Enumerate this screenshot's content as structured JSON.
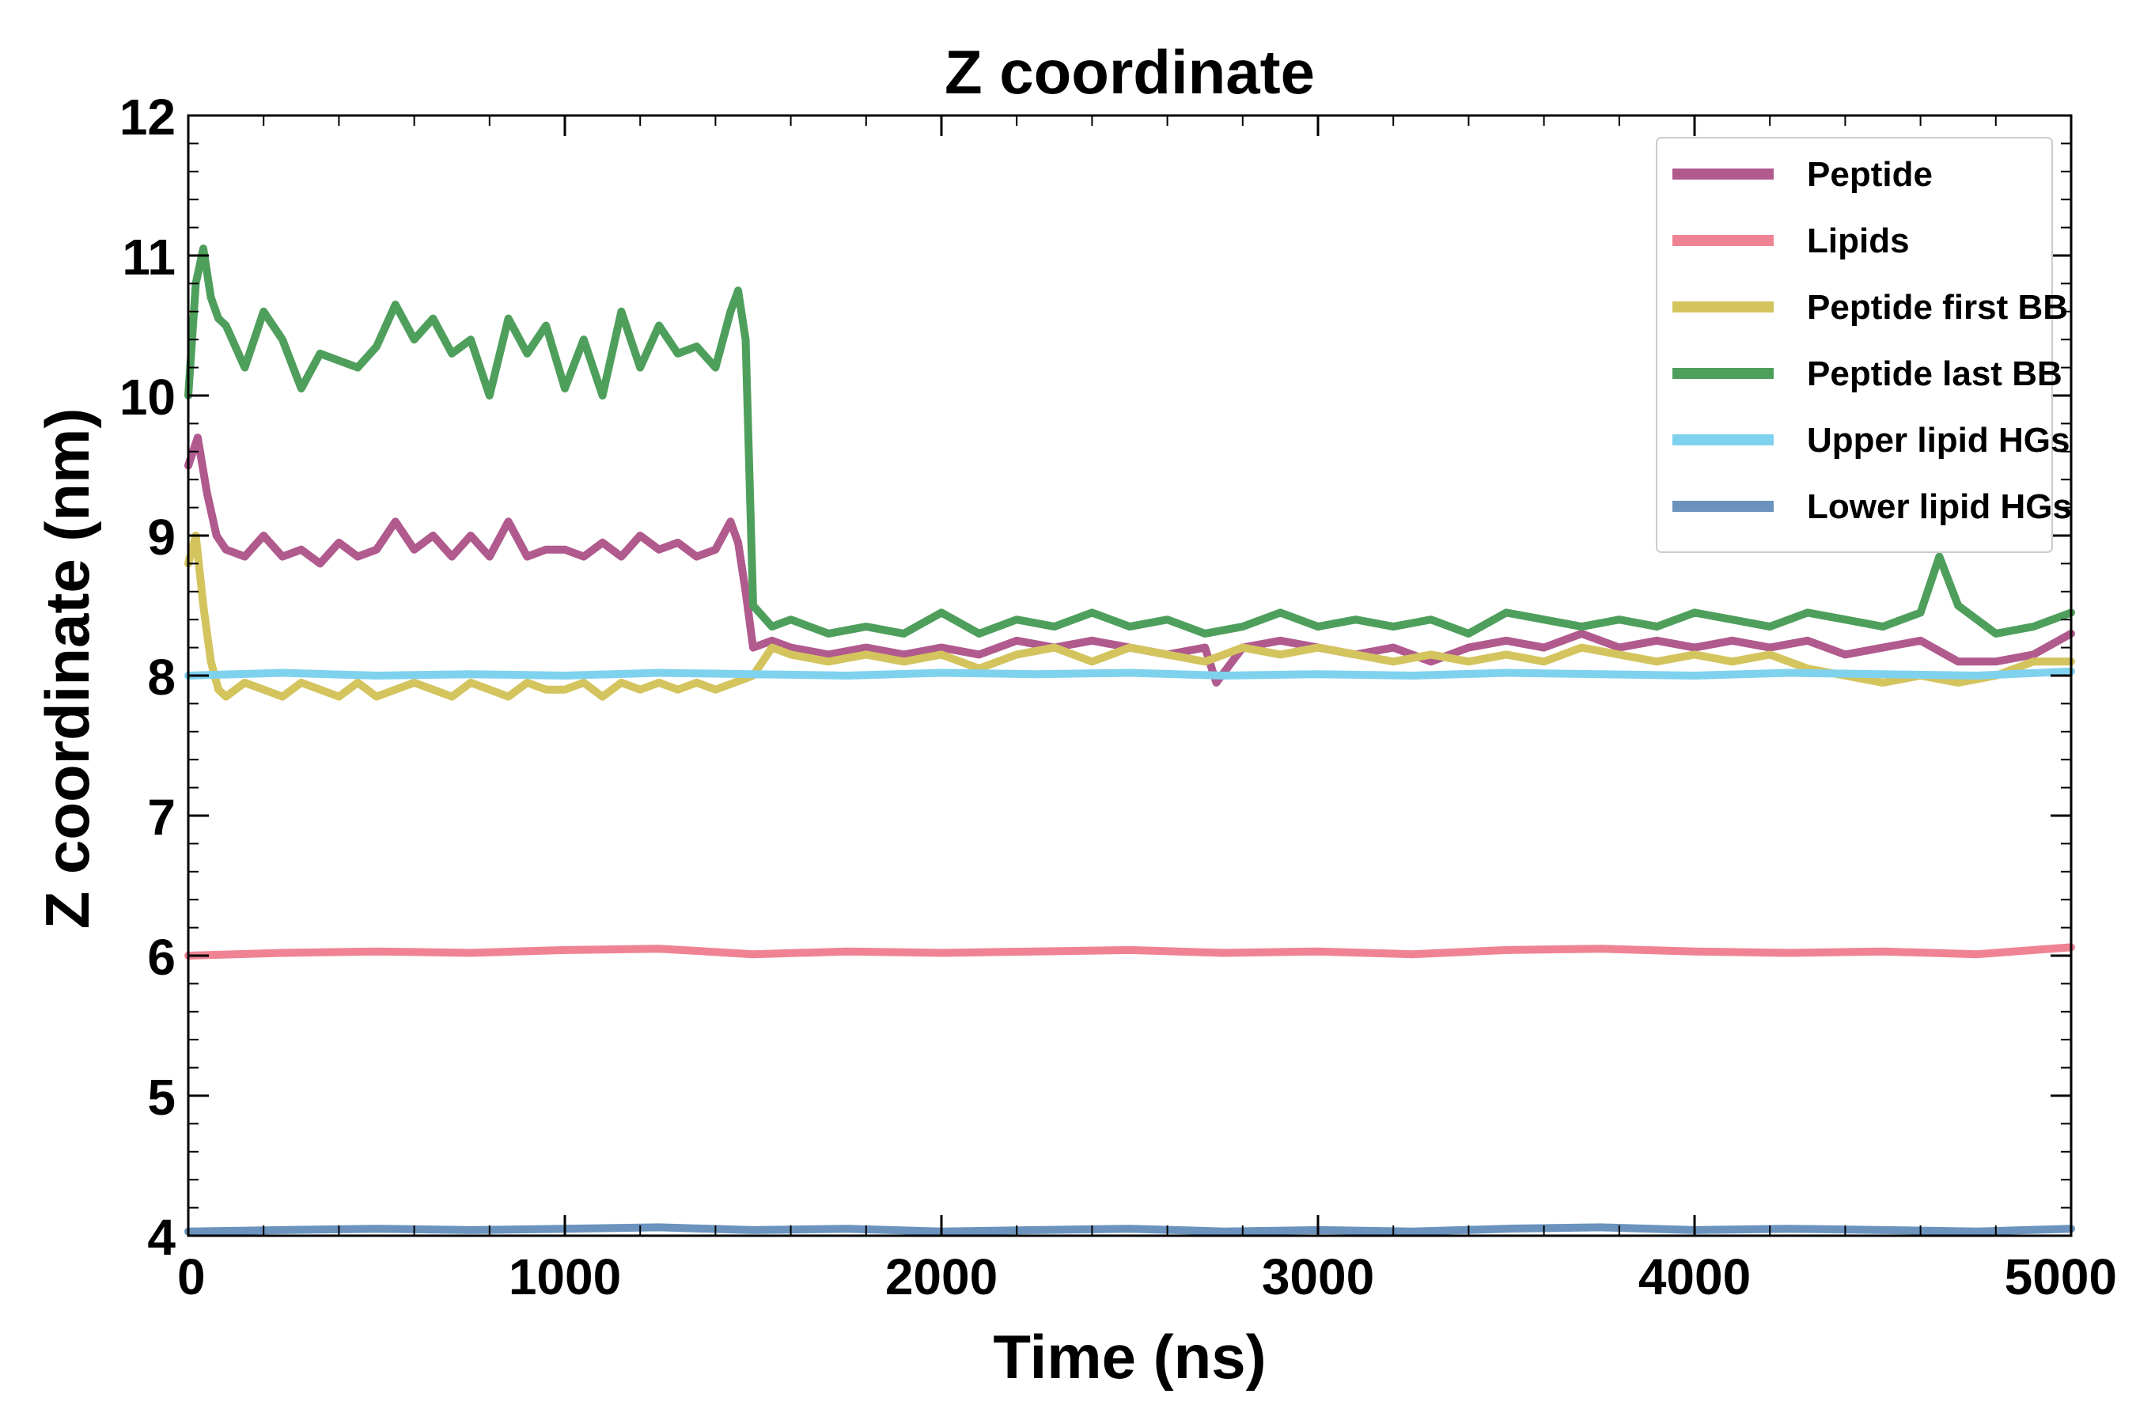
{
  "chart_data": {
    "type": "line",
    "title": "Z coordinate",
    "xlabel": "Time (ns)",
    "ylabel": "Z coordinate (nm)",
    "xlim": [
      0,
      5000
    ],
    "ylim": [
      4,
      12
    ],
    "xticks": [
      "0",
      "1000",
      "2000",
      "3000",
      "4000",
      "5000"
    ],
    "yticks": [
      "4",
      "5",
      "6",
      "7",
      "8",
      "9",
      "10",
      "11",
      "12"
    ],
    "grid": false,
    "legend_position": "top-right",
    "series": [
      {
        "name": "Peptide",
        "color": "#b05a8e",
        "x": [
          0,
          25,
          50,
          75,
          100,
          150,
          200,
          250,
          300,
          350,
          400,
          450,
          500,
          550,
          600,
          650,
          700,
          750,
          800,
          850,
          900,
          950,
          1000,
          1050,
          1100,
          1150,
          1200,
          1250,
          1300,
          1350,
          1400,
          1440,
          1460,
          1480,
          1500,
          1550,
          1600,
          1700,
          1800,
          1900,
          2000,
          2100,
          2200,
          2300,
          2400,
          2500,
          2600,
          2700,
          2730,
          2800,
          2900,
          3000,
          3100,
          3200,
          3300,
          3400,
          3500,
          3600,
          3700,
          3800,
          3900,
          4000,
          4100,
          4200,
          4300,
          4400,
          4500,
          4600,
          4700,
          4800,
          4900,
          5000
        ],
        "y": [
          9.5,
          9.7,
          9.3,
          9.0,
          8.9,
          8.85,
          9.0,
          8.85,
          8.9,
          8.8,
          8.95,
          8.85,
          8.9,
          9.1,
          8.9,
          9.0,
          8.85,
          9.0,
          8.85,
          9.1,
          8.85,
          8.9,
          8.9,
          8.85,
          8.95,
          8.85,
          9.0,
          8.9,
          8.95,
          8.85,
          8.9,
          9.1,
          8.95,
          8.6,
          8.2,
          8.25,
          8.2,
          8.15,
          8.2,
          8.15,
          8.2,
          8.15,
          8.25,
          8.2,
          8.25,
          8.2,
          8.15,
          8.2,
          7.95,
          8.2,
          8.25,
          8.2,
          8.15,
          8.2,
          8.1,
          8.2,
          8.25,
          8.2,
          8.3,
          8.2,
          8.25,
          8.2,
          8.25,
          8.2,
          8.25,
          8.15,
          8.2,
          8.25,
          8.1,
          8.1,
          8.15,
          8.3
        ]
      },
      {
        "name": "Lipids",
        "color": "#f08393",
        "x": [
          0,
          250,
          500,
          750,
          1000,
          1250,
          1500,
          1750,
          2000,
          2250,
          2500,
          2750,
          3000,
          3250,
          3500,
          3750,
          4000,
          4250,
          4500,
          4750,
          5000
        ],
        "y": [
          6.0,
          6.02,
          6.03,
          6.02,
          6.04,
          6.05,
          6.01,
          6.03,
          6.02,
          6.03,
          6.04,
          6.02,
          6.03,
          6.01,
          6.04,
          6.05,
          6.03,
          6.02,
          6.03,
          6.01,
          6.06
        ]
      },
      {
        "name": "Peptide first BB",
        "color": "#d4c45e",
        "x": [
          0,
          20,
          40,
          60,
          80,
          100,
          150,
          200,
          250,
          300,
          350,
          400,
          450,
          500,
          550,
          600,
          650,
          700,
          750,
          800,
          850,
          900,
          950,
          1000,
          1050,
          1100,
          1150,
          1200,
          1250,
          1300,
          1350,
          1400,
          1450,
          1500,
          1550,
          1600,
          1700,
          1800,
          1900,
          2000,
          2100,
          2200,
          2300,
          2400,
          2500,
          2600,
          2700,
          2800,
          2900,
          3000,
          3100,
          3200,
          3300,
          3400,
          3500,
          3600,
          3700,
          3800,
          3900,
          4000,
          4100,
          4200,
          4300,
          4400,
          4500,
          4600,
          4700,
          4800,
          4900,
          5000
        ],
        "y": [
          8.8,
          9.0,
          8.5,
          8.1,
          7.9,
          7.85,
          7.95,
          7.9,
          7.85,
          7.95,
          7.9,
          7.85,
          7.95,
          7.85,
          7.9,
          7.95,
          7.9,
          7.85,
          7.95,
          7.9,
          7.85,
          7.95,
          7.9,
          7.9,
          7.95,
          7.85,
          7.95,
          7.9,
          7.95,
          7.9,
          7.95,
          7.9,
          7.95,
          8.0,
          8.2,
          8.15,
          8.1,
          8.15,
          8.1,
          8.15,
          8.05,
          8.15,
          8.2,
          8.1,
          8.2,
          8.15,
          8.1,
          8.2,
          8.15,
          8.2,
          8.15,
          8.1,
          8.15,
          8.1,
          8.15,
          8.1,
          8.2,
          8.15,
          8.1,
          8.15,
          8.1,
          8.15,
          8.05,
          8.0,
          7.95,
          8.0,
          7.95,
          8.0,
          8.1,
          8.1
        ]
      },
      {
        "name": "Peptide last BB",
        "color": "#4f9f5c",
        "x": [
          0,
          20,
          40,
          60,
          80,
          100,
          150,
          200,
          250,
          300,
          350,
          400,
          450,
          500,
          550,
          600,
          650,
          700,
          750,
          800,
          850,
          900,
          950,
          1000,
          1050,
          1100,
          1150,
          1200,
          1250,
          1300,
          1350,
          1400,
          1440,
          1460,
          1480,
          1500,
          1550,
          1600,
          1700,
          1800,
          1900,
          2000,
          2100,
          2200,
          2300,
          2400,
          2500,
          2600,
          2700,
          2800,
          2900,
          3000,
          3100,
          3200,
          3300,
          3400,
          3500,
          3600,
          3700,
          3800,
          3900,
          4000,
          4100,
          4200,
          4300,
          4400,
          4500,
          4600,
          4650,
          4700,
          4800,
          4900,
          5000
        ],
        "y": [
          10.0,
          10.8,
          11.05,
          10.7,
          10.55,
          10.5,
          10.2,
          10.6,
          10.4,
          10.05,
          10.3,
          10.25,
          10.2,
          10.35,
          10.65,
          10.4,
          10.55,
          10.3,
          10.4,
          10.0,
          10.55,
          10.3,
          10.5,
          10.05,
          10.4,
          10.0,
          10.6,
          10.2,
          10.5,
          10.3,
          10.35,
          10.2,
          10.6,
          10.75,
          10.4,
          8.5,
          8.35,
          8.4,
          8.3,
          8.35,
          8.3,
          8.45,
          8.3,
          8.4,
          8.35,
          8.45,
          8.35,
          8.4,
          8.3,
          8.35,
          8.45,
          8.35,
          8.4,
          8.35,
          8.4,
          8.3,
          8.45,
          8.4,
          8.35,
          8.4,
          8.35,
          8.45,
          8.4,
          8.35,
          8.45,
          8.4,
          8.35,
          8.45,
          8.85,
          8.5,
          8.3,
          8.35,
          8.45
        ]
      },
      {
        "name": "Upper lipid HGs",
        "color": "#7fd2ee",
        "x": [
          0,
          250,
          500,
          750,
          1000,
          1250,
          1500,
          1750,
          2000,
          2250,
          2500,
          2750,
          3000,
          3250,
          3500,
          3750,
          4000,
          4250,
          4500,
          4750,
          5000
        ],
        "y": [
          8.0,
          8.02,
          8.0,
          8.01,
          8.0,
          8.02,
          8.01,
          8.0,
          8.02,
          8.01,
          8.02,
          8.0,
          8.01,
          8.0,
          8.02,
          8.01,
          8.0,
          8.02,
          8.01,
          8.0,
          8.03
        ]
      },
      {
        "name": "Lower lipid HGs",
        "color": "#6b93bd",
        "x": [
          0,
          250,
          500,
          750,
          1000,
          1250,
          1500,
          1750,
          2000,
          2250,
          2500,
          2750,
          3000,
          3250,
          3500,
          3750,
          4000,
          4250,
          4500,
          4750,
          5000
        ],
        "y": [
          4.03,
          4.04,
          4.05,
          4.04,
          4.05,
          4.06,
          4.04,
          4.05,
          4.03,
          4.04,
          4.05,
          4.03,
          4.04,
          4.03,
          4.05,
          4.06,
          4.04,
          4.05,
          4.04,
          4.03,
          4.05
        ]
      }
    ]
  }
}
